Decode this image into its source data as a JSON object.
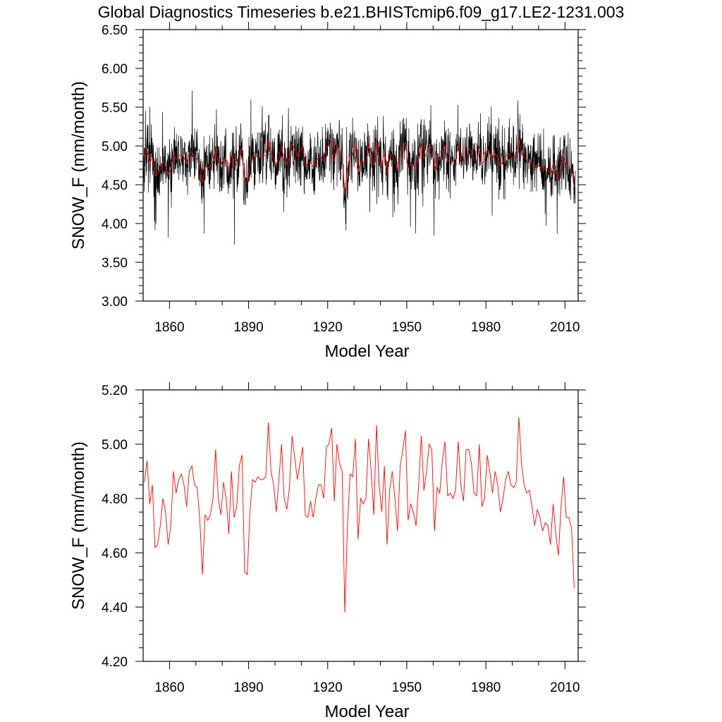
{
  "figure": {
    "title": "Global Diagnostics Timeseries b.e21.BHISTcmip6.f09_g17.LE2-1231.003"
  },
  "colors": {
    "monthly": "#000000",
    "annual": "#ff0000",
    "frame": "#000000"
  },
  "chart_data": [
    {
      "type": "line",
      "xlabel": "Model Year",
      "ylabel": "SNOW_F (mm/month)",
      "xlim": [
        1850,
        2015
      ],
      "ylim": [
        3.0,
        6.5
      ],
      "x_ticks": [
        "1860",
        "1890",
        "1920",
        "1950",
        "1980",
        "2010"
      ],
      "y_ticks": [
        "3.00",
        "3.50",
        "4.00",
        "4.50",
        "5.00",
        "5.50",
        "6.00",
        "6.50"
      ],
      "series": [
        {
          "color": "#000000",
          "resolution": "monthly",
          "annual_means": [
            4.86,
            4.94,
            4.78,
            4.85,
            4.62,
            4.63,
            4.7,
            4.8,
            4.75,
            4.63,
            4.7,
            4.9,
            4.82,
            4.87,
            4.89,
            4.85,
            4.77,
            4.9,
            4.92,
            4.85,
            4.84,
            4.72,
            4.52,
            4.74,
            4.72,
            4.74,
            4.8,
            4.98,
            4.8,
            4.74,
            4.86,
            4.8,
            4.67,
            4.9,
            4.73,
            4.77,
            4.92,
            4.96,
            4.53,
            4.52,
            4.75,
            4.87,
            4.86,
            4.88,
            4.87,
            4.87,
            4.88,
            5.08,
            4.9,
            4.85,
            4.75,
            4.87,
            5.0,
            4.8,
            4.76,
            4.84,
            5.03,
            4.95,
            4.87,
            4.93,
            4.99,
            4.74,
            4.73,
            4.79,
            4.73,
            4.8,
            4.85,
            4.85,
            4.8,
            4.99,
            5.0,
            5.06,
            4.79,
            5.0,
            4.93,
            4.9,
            4.38,
            4.7,
            4.89,
            4.88,
            5.02,
            4.65,
            4.8,
            4.78,
            4.8,
            5.02,
            4.9,
            4.74,
            5.07,
            4.85,
            4.75,
            4.92,
            4.63,
            4.83,
            4.9,
            4.8,
            4.68,
            4.92,
            4.98,
            5.05,
            4.72,
            4.78,
            4.75,
            4.7,
            4.85,
            5.03,
            4.83,
            4.9,
            5.0,
            4.98,
            4.68,
            4.84,
            4.82,
            4.94,
            5.01,
            4.81,
            4.82,
            4.8,
            4.83,
            5.01,
            4.85,
            4.79,
            4.98,
            4.98,
            4.93,
            4.82,
            4.81,
            5.0,
            4.77,
            4.8,
            4.96,
            4.9,
            4.82,
            4.9,
            4.85,
            4.75,
            4.8,
            4.87,
            4.9,
            4.85,
            4.84,
            4.86,
            5.1,
            4.93,
            4.85,
            4.82,
            4.83,
            4.77,
            4.7,
            4.76,
            4.73,
            4.68,
            4.71,
            4.7,
            4.63,
            4.78,
            4.67,
            4.59,
            4.77,
            4.88,
            4.73,
            4.73,
            4.69,
            4.47
          ]
        },
        {
          "color": "#ff0000",
          "resolution": "annual",
          "values": [
            4.86,
            4.94,
            4.78,
            4.85,
            4.62,
            4.63,
            4.7,
            4.8,
            4.75,
            4.63,
            4.7,
            4.9,
            4.82,
            4.87,
            4.89,
            4.85,
            4.77,
            4.9,
            4.92,
            4.85,
            4.84,
            4.72,
            4.52,
            4.74,
            4.72,
            4.74,
            4.8,
            4.98,
            4.8,
            4.74,
            4.86,
            4.8,
            4.67,
            4.9,
            4.73,
            4.77,
            4.92,
            4.96,
            4.53,
            4.52,
            4.75,
            4.87,
            4.86,
            4.88,
            4.87,
            4.87,
            4.88,
            5.08,
            4.9,
            4.85,
            4.75,
            4.87,
            5.0,
            4.8,
            4.76,
            4.84,
            5.03,
            4.95,
            4.87,
            4.93,
            4.99,
            4.74,
            4.73,
            4.79,
            4.73,
            4.8,
            4.85,
            4.85,
            4.8,
            4.99,
            5.0,
            5.06,
            4.79,
            5.0,
            4.93,
            4.9,
            4.38,
            4.7,
            4.89,
            4.88,
            5.02,
            4.65,
            4.8,
            4.78,
            4.8,
            5.02,
            4.9,
            4.74,
            5.07,
            4.85,
            4.75,
            4.92,
            4.63,
            4.83,
            4.9,
            4.8,
            4.68,
            4.92,
            4.98,
            5.05,
            4.72,
            4.78,
            4.75,
            4.7,
            4.85,
            5.03,
            4.83,
            4.9,
            5.0,
            4.98,
            4.68,
            4.84,
            4.82,
            4.94,
            5.01,
            4.81,
            4.82,
            4.8,
            4.83,
            5.01,
            4.85,
            4.79,
            4.98,
            4.98,
            4.93,
            4.82,
            4.81,
            5.0,
            4.77,
            4.8,
            4.96,
            4.9,
            4.82,
            4.9,
            4.85,
            4.75,
            4.8,
            4.87,
            4.9,
            4.85,
            4.84,
            4.86,
            5.1,
            4.93,
            4.85,
            4.82,
            4.83,
            4.77,
            4.7,
            4.76,
            4.73,
            4.68,
            4.71,
            4.7,
            4.63,
            4.78,
            4.67,
            4.59,
            4.77,
            4.88,
            4.73,
            4.73,
            4.69,
            4.47
          ]
        }
      ]
    },
    {
      "type": "line",
      "xlabel": "Model Year",
      "ylabel": "SNOW_F (mm/month)",
      "xlim": [
        1850,
        2015
      ],
      "ylim": [
        4.2,
        5.2
      ],
      "x_ticks": [
        "1860",
        "1890",
        "1920",
        "1950",
        "1980",
        "2010"
      ],
      "y_ticks": [
        "4.20",
        "4.40",
        "4.60",
        "4.80",
        "5.00",
        "5.20"
      ],
      "series": [
        {
          "color": "#ff0000",
          "resolution": "annual",
          "values": [
            4.86,
            4.94,
            4.78,
            4.85,
            4.62,
            4.63,
            4.7,
            4.8,
            4.75,
            4.63,
            4.7,
            4.9,
            4.82,
            4.87,
            4.89,
            4.85,
            4.77,
            4.9,
            4.92,
            4.85,
            4.84,
            4.72,
            4.52,
            4.74,
            4.72,
            4.74,
            4.8,
            4.98,
            4.8,
            4.74,
            4.86,
            4.8,
            4.67,
            4.9,
            4.73,
            4.77,
            4.92,
            4.96,
            4.53,
            4.52,
            4.75,
            4.87,
            4.86,
            4.88,
            4.87,
            4.87,
            4.88,
            5.08,
            4.9,
            4.85,
            4.75,
            4.87,
            5.0,
            4.8,
            4.76,
            4.84,
            5.03,
            4.95,
            4.87,
            4.93,
            4.99,
            4.74,
            4.73,
            4.79,
            4.73,
            4.8,
            4.85,
            4.85,
            4.8,
            4.99,
            5.0,
            5.06,
            4.79,
            5.0,
            4.93,
            4.9,
            4.38,
            4.7,
            4.89,
            4.88,
            5.02,
            4.65,
            4.8,
            4.78,
            4.8,
            5.02,
            4.9,
            4.74,
            5.07,
            4.85,
            4.75,
            4.92,
            4.63,
            4.83,
            4.9,
            4.8,
            4.68,
            4.92,
            4.98,
            5.05,
            4.72,
            4.78,
            4.75,
            4.7,
            4.85,
            5.03,
            4.83,
            4.9,
            5.0,
            4.98,
            4.68,
            4.84,
            4.82,
            4.94,
            5.01,
            4.81,
            4.82,
            4.8,
            4.83,
            5.01,
            4.85,
            4.79,
            4.98,
            4.98,
            4.93,
            4.82,
            4.81,
            5.0,
            4.77,
            4.8,
            4.96,
            4.9,
            4.82,
            4.9,
            4.85,
            4.75,
            4.8,
            4.87,
            4.9,
            4.85,
            4.84,
            4.86,
            5.1,
            4.93,
            4.85,
            4.82,
            4.83,
            4.77,
            4.7,
            4.76,
            4.73,
            4.68,
            4.71,
            4.7,
            4.63,
            4.78,
            4.67,
            4.59,
            4.77,
            4.88,
            4.73,
            4.73,
            4.69,
            4.47
          ]
        }
      ]
    }
  ]
}
